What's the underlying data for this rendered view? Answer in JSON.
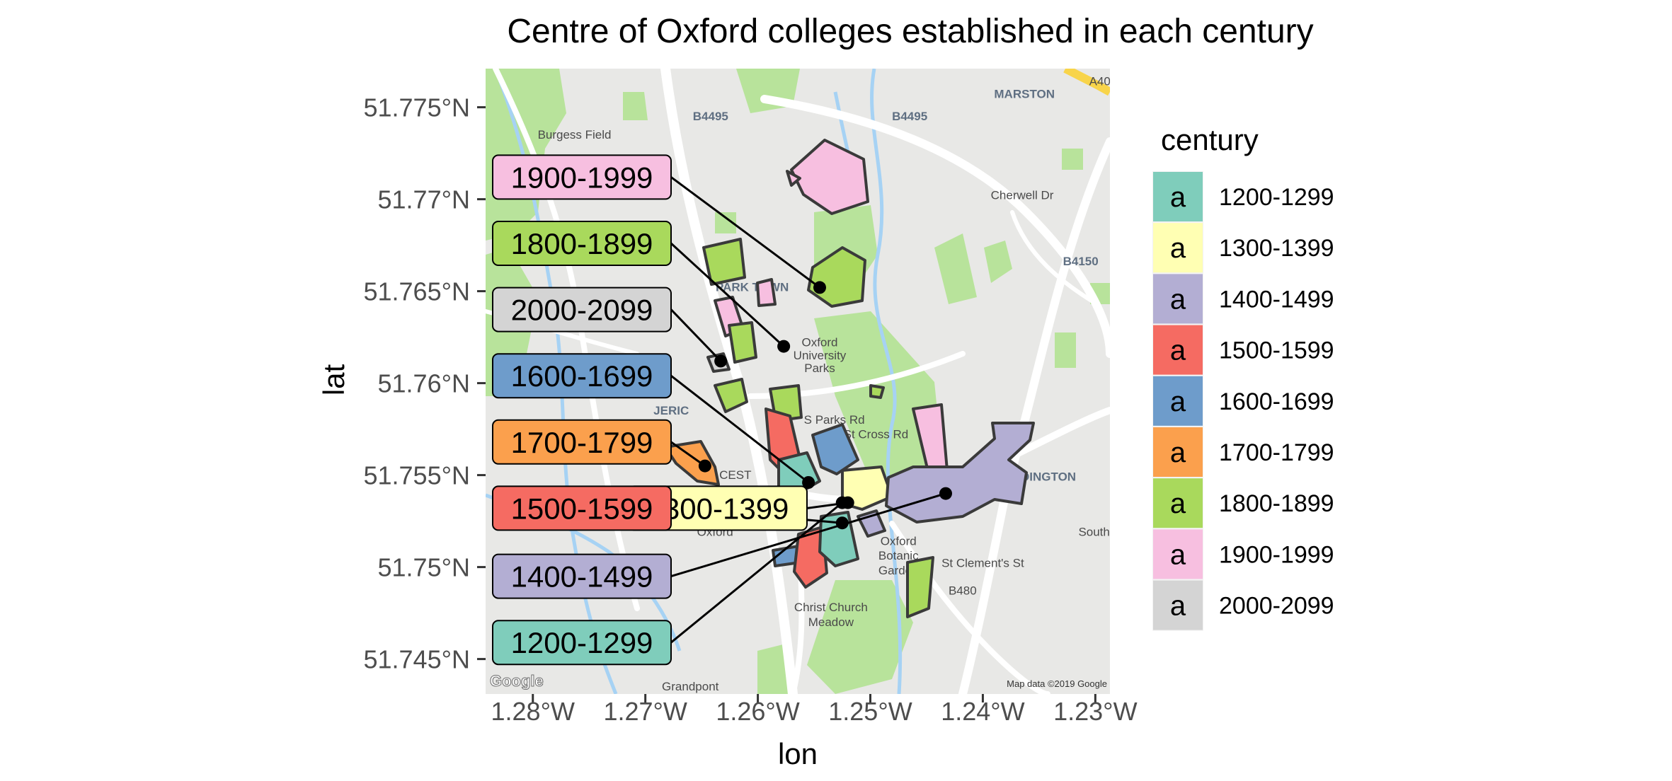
{
  "title": "Centre of Oxford colleges established in each century",
  "xlabel": "lon",
  "ylabel": "lat",
  "x_ticks": [
    "1.28°W",
    "1.27°W",
    "1.26°W",
    "1.25°W",
    "1.24°W",
    "1.23°W"
  ],
  "y_ticks": [
    "51.775°N",
    "51.77°N",
    "51.765°N",
    "51.76°N",
    "51.755°N",
    "51.75°N",
    "51.745°N"
  ],
  "x_tick_values": [
    -1.28,
    -1.27,
    -1.26,
    -1.25,
    -1.24,
    -1.23
  ],
  "y_tick_values": [
    51.775,
    51.77,
    51.765,
    51.76,
    51.755,
    51.75,
    51.745
  ],
  "legend": {
    "title": "century",
    "key_glyph": "a",
    "entries": [
      {
        "label": "1200-1299",
        "color": "#7fcdbb"
      },
      {
        "label": "1300-1399",
        "color": "#ffffb3"
      },
      {
        "label": "1400-1499",
        "color": "#b3aed3"
      },
      {
        "label": "1500-1599",
        "color": "#f56b62"
      },
      {
        "label": "1600-1699",
        "color": "#6e9ccb"
      },
      {
        "label": "1700-1799",
        "color": "#fba04d"
      },
      {
        "label": "1800-1899",
        "color": "#a9d95c"
      },
      {
        "label": "1900-1999",
        "color": "#f7bfe0"
      },
      {
        "label": "2000-2099",
        "color": "#d4d4d4"
      }
    ]
  },
  "map_attribution": {
    "logo": "Google",
    "credit": "Map data ©2019 Google"
  },
  "map_places": [
    {
      "text": "MARSTON",
      "lon": -1.2363,
      "lat": 51.7755
    },
    {
      "text": "Burgess Field",
      "lon": -1.2763,
      "lat": 51.7733
    },
    {
      "text": "B4495",
      "lon": -1.2642,
      "lat": 51.7743
    },
    {
      "text": "B4495",
      "lon": -1.2465,
      "lat": 51.7743
    },
    {
      "text": "PARK TOWN",
      "lon": -1.2605,
      "lat": 51.765
    },
    {
      "text": "Oxford",
      "lon": -1.2545,
      "lat": 51.762
    },
    {
      "text": "University",
      "lon": -1.2545,
      "lat": 51.7613
    },
    {
      "text": "Parks",
      "lon": -1.2545,
      "lat": 51.7606
    },
    {
      "text": "JERIC",
      "lon": -1.2677,
      "lat": 51.7583
    },
    {
      "text": "CEST",
      "lon": -1.262,
      "lat": 51.7548
    },
    {
      "text": "S Parks Rd",
      "lon": -1.2532,
      "lat": 51.7578
    },
    {
      "text": "St Cross Rd",
      "lon": -1.2495,
      "lat": 51.757
    },
    {
      "text": "Oxford",
      "lon": -1.2638,
      "lat": 51.7517
    },
    {
      "text": "Oxford",
      "lon": -1.2475,
      "lat": 51.7512
    },
    {
      "text": "Botanic",
      "lon": -1.2475,
      "lat": 51.7504
    },
    {
      "text": "Garden",
      "lon": -1.2475,
      "lat": 51.7496
    },
    {
      "text": "Christ Church",
      "lon": -1.2535,
      "lat": 51.7476
    },
    {
      "text": "Meadow",
      "lon": -1.2535,
      "lat": 51.7468
    },
    {
      "text": "St Clement's St",
      "lon": -1.24,
      "lat": 51.75
    },
    {
      "text": "B480",
      "lon": -1.2418,
      "lat": 51.7485
    },
    {
      "text": "HEADINGTON",
      "lon": -1.2353,
      "lat": 51.7547
    },
    {
      "text": "South P",
      "lon": -1.2296,
      "lat": 51.7517
    },
    {
      "text": "Cherwell Dr",
      "lon": -1.2365,
      "lat": 51.77
    },
    {
      "text": "B4150",
      "lon": -1.2313,
      "lat": 51.7664
    },
    {
      "text": "A40",
      "lon": -1.2296,
      "lat": 51.7762
    },
    {
      "text": "Grandpont",
      "lon": -1.266,
      "lat": 51.7433
    }
  ],
  "chart_data": {
    "type": "map",
    "title": "Centre of Oxford colleges established in each century",
    "xlabel": "lon",
    "ylabel": "lat",
    "xlim": [
      -1.2842,
      -1.2287
    ],
    "ylim": [
      51.7431,
      51.7771
    ],
    "legend_title": "century",
    "legend_position": "right",
    "points": [
      {
        "century": "1900-1999",
        "lon": -1.2545,
        "lat": 51.7652,
        "label_lat": 51.7712
      },
      {
        "century": "1800-1899",
        "lon": -1.2577,
        "lat": 51.762,
        "label_lat": 51.7676
      },
      {
        "century": "2000-2099",
        "lon": -1.2633,
        "lat": 51.7612,
        "label_lat": 51.764
      },
      {
        "century": "1600-1699",
        "lon": -1.2555,
        "lat": 51.7546,
        "label_lat": 51.7604
      },
      {
        "century": "1700-1799",
        "lon": -1.2647,
        "lat": 51.7555,
        "label_lat": 51.7568
      },
      {
        "century": "1500-1599",
        "lon": -1.2525,
        "lat": 51.7524,
        "label_lat": 51.7532
      },
      {
        "century": "1300-1399",
        "lon": -1.252,
        "lat": 51.7535,
        "label_lat": 51.7532
      },
      {
        "century": "1400-1499",
        "lon": -1.2433,
        "lat": 51.754,
        "label_lat": 51.7495
      },
      {
        "century": "1200-1299",
        "lon": -1.2525,
        "lat": 51.7535,
        "label_lat": 51.7459
      }
    ]
  }
}
